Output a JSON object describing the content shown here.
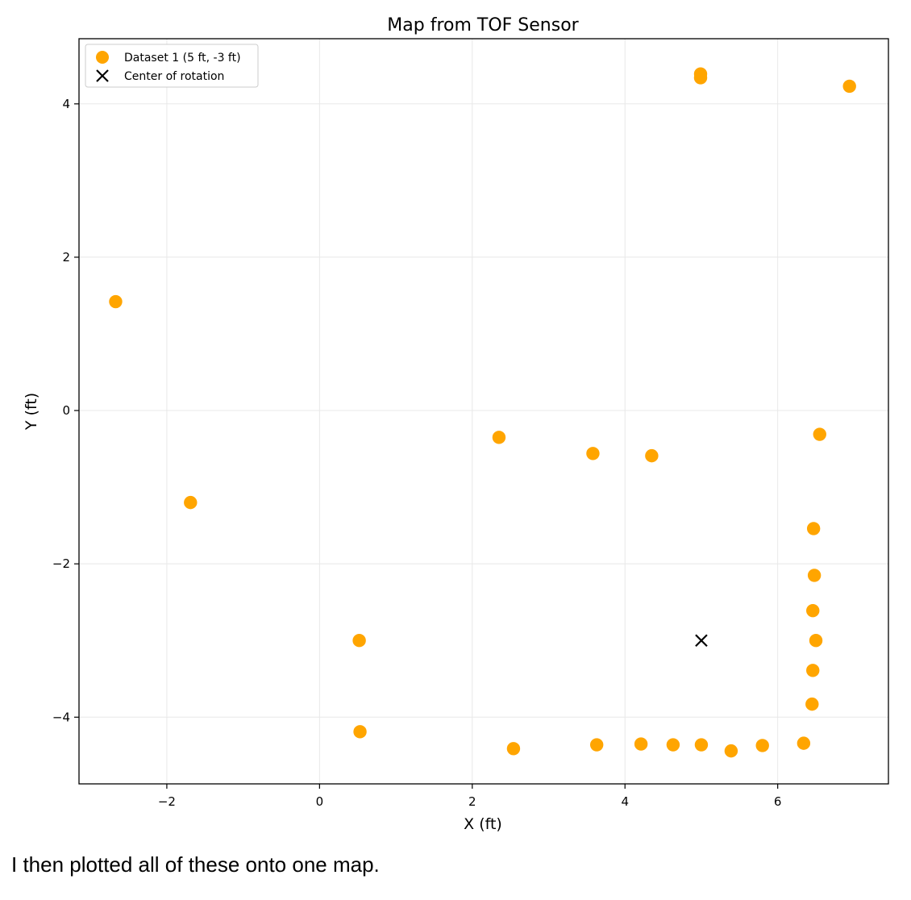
{
  "caption": "I then plotted all of these onto one map.",
  "chart_data": {
    "type": "scatter",
    "title": "Map from TOF Sensor",
    "xlabel": "X (ft)",
    "ylabel": "Y (ft)",
    "xlim": [
      -3.15,
      7.45
    ],
    "ylim": [
      -4.87,
      4.85
    ],
    "xticks": [
      -2,
      0,
      2,
      4,
      6
    ],
    "xtick_labels": [
      "−2",
      "0",
      "2",
      "4",
      "6"
    ],
    "yticks": [
      -4,
      -2,
      0,
      2,
      4
    ],
    "ytick_labels": [
      "−4",
      "−2",
      "0",
      "2",
      "4"
    ],
    "grid": true,
    "legend_position": "upper-left",
    "series": [
      {
        "name": "Dataset 1 (5 ft, -3 ft)",
        "marker": "circle",
        "color": "#FFA500",
        "points": [
          [
            -2.67,
            1.42
          ],
          [
            -1.69,
            -1.2
          ],
          [
            0.52,
            -3.0
          ],
          [
            0.53,
            -4.19
          ],
          [
            2.35,
            -0.35
          ],
          [
            2.54,
            -4.41
          ],
          [
            3.58,
            -0.56
          ],
          [
            3.63,
            -4.36
          ],
          [
            4.21,
            -4.35
          ],
          [
            4.35,
            -0.59
          ],
          [
            4.63,
            -4.36
          ],
          [
            4.99,
            4.39
          ],
          [
            4.99,
            4.34
          ],
          [
            5.0,
            -4.36
          ],
          [
            5.39,
            -4.44
          ],
          [
            5.8,
            -4.37
          ],
          [
            6.34,
            -4.34
          ],
          [
            6.45,
            -3.83
          ],
          [
            6.46,
            -3.39
          ],
          [
            6.46,
            -2.61
          ],
          [
            6.47,
            -1.54
          ],
          [
            6.48,
            -2.15
          ],
          [
            6.5,
            -3.0
          ],
          [
            6.55,
            -0.31
          ],
          [
            6.94,
            4.23
          ]
        ]
      },
      {
        "name": "Center of rotation",
        "marker": "x",
        "color": "#000000",
        "points": [
          [
            5.0,
            -3.0
          ]
        ]
      }
    ]
  }
}
